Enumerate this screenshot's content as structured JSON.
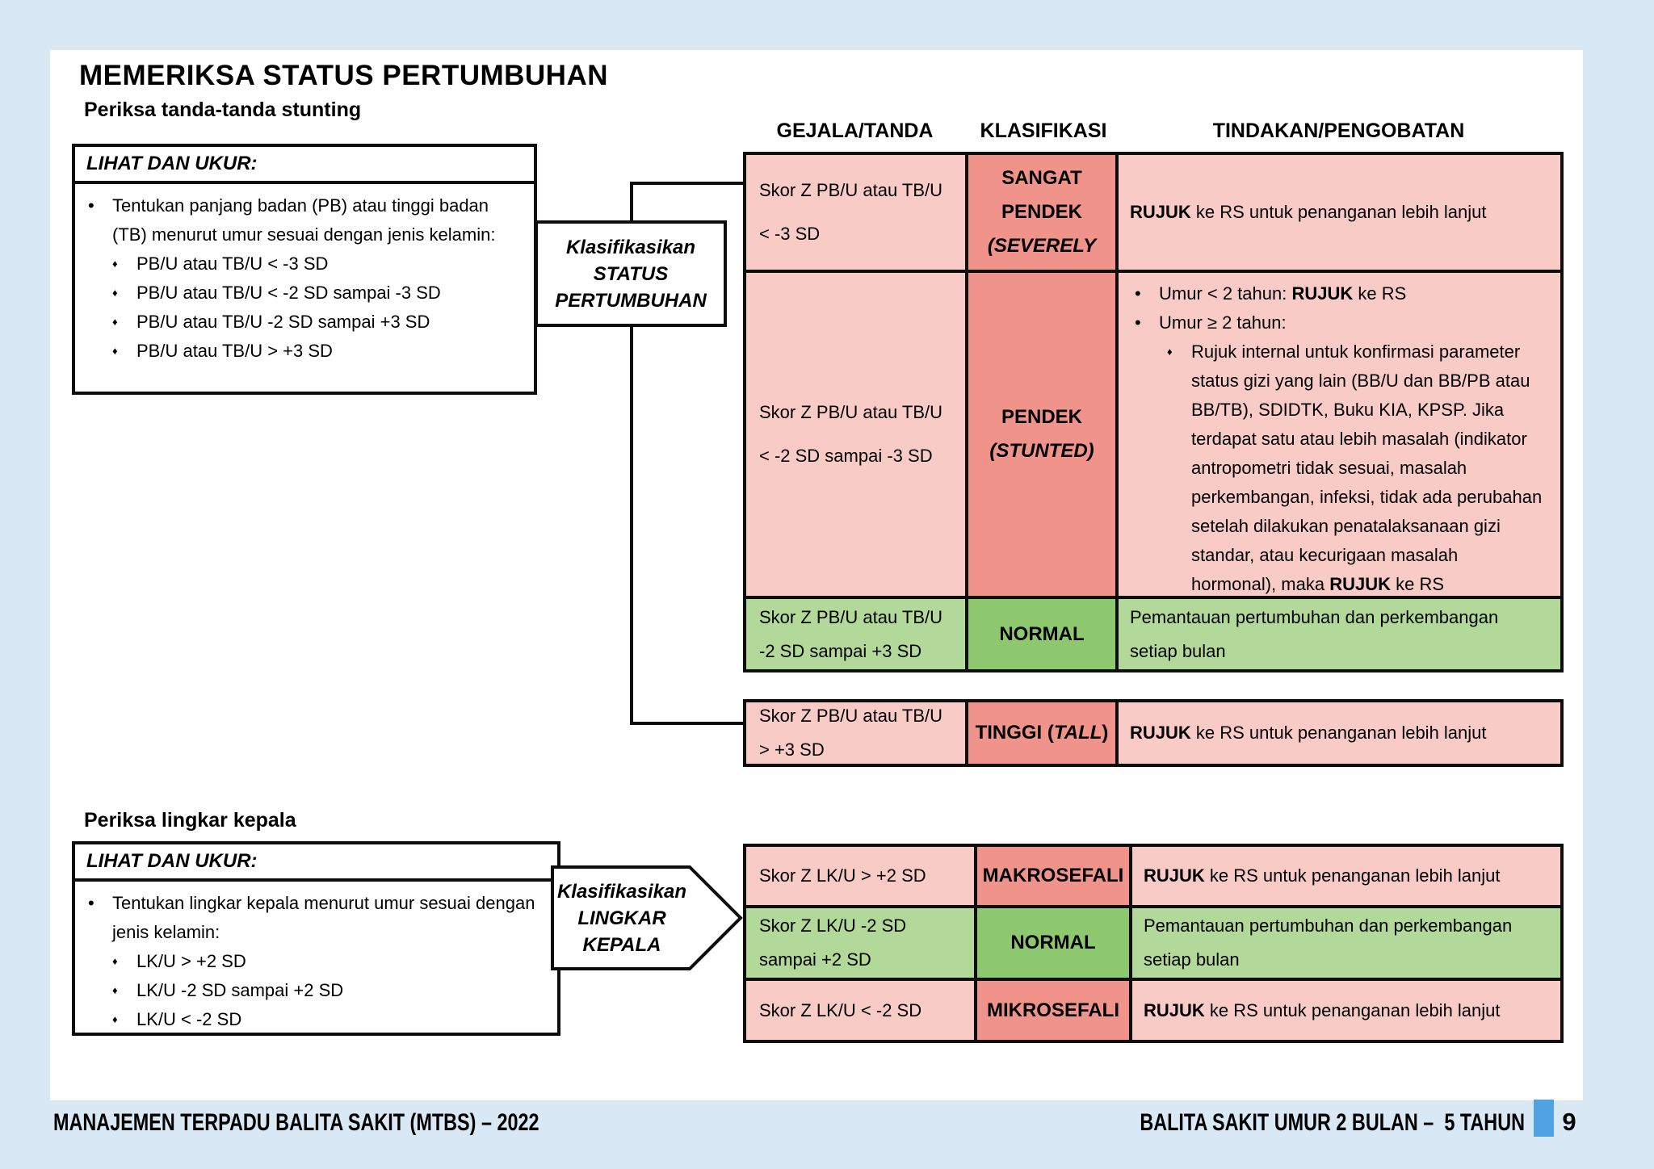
{
  "title": "MEMERIKSA STATUS PERTUMBUHAN",
  "icons": {
    "dot": "•",
    "diamond": "♦"
  },
  "colors": {
    "background": "#D9E8F5",
    "page": "#FFFFFF",
    "cell_pink": "#F8CBC7",
    "cell_salmon": "#F0948B",
    "cell_light_green": "#B2D89A",
    "cell_green": "#8EC86E",
    "accent_blue": "#4FA3E3",
    "border": "#0D0D0D"
  },
  "headers": {
    "col1": "GEJALA/TANDA",
    "col2": "KLASIFIKASI",
    "col3": "TINDAKAN/PENGOBATAN"
  },
  "stunting": {
    "heading": "Periksa tanda-tanda stunting",
    "look": {
      "title": "LIHAT DAN UKUR:",
      "intro": "Tentukan panjang badan (PB) atau tinggi badan (TB) menurut umur sesuai dengan jenis kelamin:",
      "items": [
        "PB/U atau TB/U < -3 SD",
        "PB/U atau TB/U < -2 SD sampai -3 SD",
        "PB/U atau TB/U -2 SD sampai +3 SD",
        "PB/U atau TB/U > +3 SD"
      ]
    },
    "classify": {
      "lines": [
        "Klasifikasikan",
        "STATUS",
        "PERTUMBUHAN"
      ]
    },
    "rows": {
      "severe": {
        "sign": [
          "Skor Z PB/U atau TB/U",
          "< -3 SD"
        ],
        "label": [
          [
            {
              "t": "SANGAT"
            }
          ],
          [
            {
              "t": "PENDEK"
            }
          ],
          [
            {
              "t": "(SEVERELY",
              "i": true
            }
          ]
        ],
        "action": [
          {
            "t": "RUJUK",
            "b": true
          },
          {
            "t": " ke RS untuk penanganan lebih lanjut"
          }
        ]
      },
      "stunted": {
        "sign": [
          "Skor Z PB/U atau TB/U",
          "< -2 SD sampai -3 SD"
        ],
        "label": [
          [
            {
              "t": "PENDEK"
            }
          ],
          [
            {
              "t": "(STUNTED)",
              "i": true
            }
          ]
        ],
        "bullets": [
          {
            "marker": "dot",
            "segs": [
              {
                "t": "Umur < 2 tahun: "
              },
              {
                "t": "RUJUK",
                "b": true
              },
              {
                "t": " ke RS"
              }
            ]
          },
          {
            "marker": "dot",
            "segs": [
              {
                "t": "Umur ≥ 2 tahun:"
              }
            ]
          },
          {
            "marker": "diamond",
            "segs": [
              {
                "t": "Rujuk internal untuk konfirmasi parameter status gizi yang lain (BB/U dan BB/PB atau BB/TB), SDIDTK, Buku KIA, KPSP. Jika terdapat satu atau lebih masalah (indikator antropometri tidak sesuai, masalah perkembangan, infeksi, tidak ada perubahan setelah dilakukan penatalaksanaan gizi standar, atau kecurigaan masalah hormonal), maka "
              },
              {
                "t": "RUJUK",
                "b": true
              },
              {
                "t": " ke RS"
              }
            ]
          }
        ]
      },
      "normal": {
        "sign": [
          "Skor Z PB/U atau TB/U",
          "-2 SD sampai +3 SD"
        ],
        "label": "NORMAL",
        "action": [
          {
            "t": "Pemantauan pertumbuhan dan perkembangan setiap bulan"
          }
        ]
      },
      "tall": {
        "sign": [
          "Skor Z PB/U atau TB/U",
          "> +3 SD"
        ],
        "label": [
          [
            {
              "t": "TINGGI ("
            },
            {
              "t": "TALL",
              "i": true
            },
            {
              "t": ")"
            }
          ]
        ],
        "action": [
          {
            "t": "RUJUK",
            "b": true
          },
          {
            "t": " ke RS untuk penanganan lebih lanjut"
          }
        ]
      }
    }
  },
  "head_circumference": {
    "heading": "Periksa lingkar kepala",
    "look": {
      "title": "LIHAT DAN UKUR:",
      "intro": "Tentukan lingkar kepala menurut umur sesuai dengan jenis kelamin:",
      "items": [
        "LK/U > +2 SD",
        "LK/U -2 SD sampai +2 SD",
        "LK/U < -2 SD"
      ]
    },
    "classify": {
      "lines": [
        "Klasifikasikan",
        "LINGKAR",
        "KEPALA"
      ]
    },
    "rows": {
      "macro": {
        "sign": [
          "Skor Z LK/U > +2 SD"
        ],
        "label": "MAKROSEFALI",
        "action": [
          {
            "t": "RUJUK",
            "b": true
          },
          {
            "t": " ke RS untuk penanganan lebih lanjut"
          }
        ]
      },
      "normal": {
        "sign": [
          "Skor Z LK/U -2 SD",
          "sampai +2 SD"
        ],
        "label": "NORMAL",
        "action": [
          {
            "t": "Pemantauan pertumbuhan dan perkembangan setiap bulan"
          }
        ]
      },
      "micro": {
        "sign": [
          "Skor Z LK/U < -2 SD"
        ],
        "label": "MIKROSEFALI",
        "action": [
          {
            "t": "RUJUK",
            "b": true
          },
          {
            "t": " ke RS untuk penanganan lebih lanjut"
          }
        ]
      }
    }
  },
  "footer": {
    "left": "MANAJEMEN TERPADU BALITA SAKIT (MTBS) – 2022",
    "right": "BALITA SAKIT UMUR 2 BULAN –  5 TAHUN",
    "page_number": "9"
  }
}
